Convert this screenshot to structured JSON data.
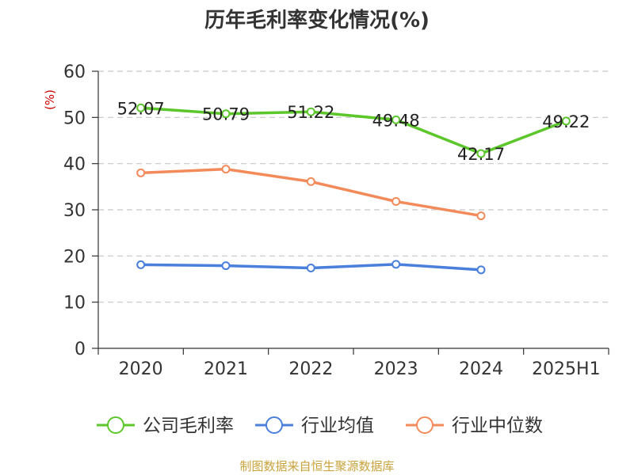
{
  "title": "历年毛利率变化情况(%)",
  "source": "制图数据来自恒生聚源数据库",
  "chart_data": {
    "type": "line",
    "title": "历年毛利率变化情况(%)",
    "xlabel": "",
    "ylabel": "(%)",
    "categories": [
      "2020",
      "2021",
      "2022",
      "2023",
      "2024",
      "2025H1"
    ],
    "ylim": [
      0,
      60
    ],
    "yticks": [
      0,
      10,
      20,
      30,
      40,
      50,
      60
    ],
    "grid": true,
    "legend_position": "bottom",
    "series": [
      {
        "name": "公司毛利率",
        "color": "#5cc72b",
        "labels": true,
        "values": [
          52.07,
          50.79,
          51.22,
          49.48,
          42.17,
          49.22
        ]
      },
      {
        "name": "行业均值",
        "color": "#4a7fdb",
        "labels": false,
        "values": [
          18.1,
          17.9,
          17.4,
          18.2,
          17.0,
          null
        ]
      },
      {
        "name": "行业中位数",
        "color": "#f28a5a",
        "labels": false,
        "values": [
          38.0,
          38.8,
          36.1,
          31.8,
          28.7,
          null
        ]
      }
    ]
  }
}
